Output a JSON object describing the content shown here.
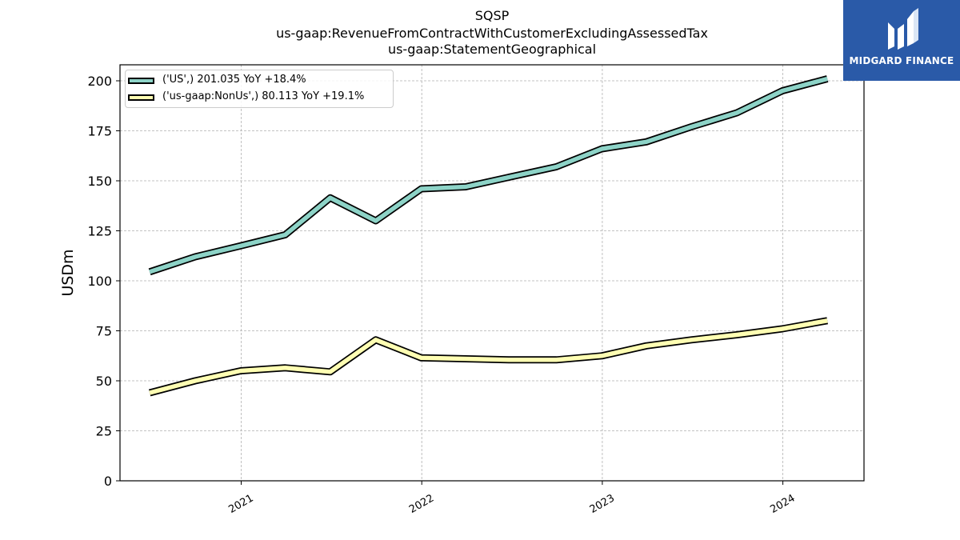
{
  "title": {
    "line1": "SQSP",
    "line2": "us-gaap:RevenueFromContractWithCustomerExcludingAssessedTax",
    "line3": "us-gaap:StatementGeographical"
  },
  "logo": {
    "text": "MIDGARD FINANCE",
    "color": "#2a5aa8",
    "icon": "midgard-logo-icon"
  },
  "chart_data": {
    "type": "line",
    "ylabel": "USDm",
    "xlabel": "",
    "ylim": [
      0,
      208
    ],
    "xlim": [
      "2020-05-01",
      "2024-06-13"
    ],
    "yticks": [
      0,
      25,
      50,
      75,
      100,
      125,
      150,
      175,
      200
    ],
    "xticks": [
      {
        "label": "2021",
        "date": "2021-01-01"
      },
      {
        "label": "2022",
        "date": "2022-01-01"
      },
      {
        "label": "2023",
        "date": "2023-01-01"
      },
      {
        "label": "2024",
        "date": "2024-01-01"
      }
    ],
    "grid": true,
    "legend_position": "top-left",
    "x": [
      "2020-06-30",
      "2020-09-30",
      "2020-12-31",
      "2021-03-31",
      "2021-06-30",
      "2021-09-30",
      "2021-12-31",
      "2022-03-31",
      "2022-06-30",
      "2022-09-30",
      "2022-12-31",
      "2023-03-31",
      "2023-06-30",
      "2023-09-30",
      "2023-12-31",
      "2024-03-31"
    ],
    "series": [
      {
        "name": "('US',) 201.035 YoY +18.4%",
        "color": "#8dd3c7",
        "values": [
          104.5,
          112.0,
          117.5,
          123.0,
          141.5,
          130.0,
          146.0,
          147.0,
          152.0,
          157.0,
          166.0,
          169.5,
          177.0,
          184.0,
          195.0,
          201.0
        ]
      },
      {
        "name": "('us-gaap:NonUs',) 80.113 YoY +19.1%",
        "color": "#ffffb3",
        "values": [
          44.0,
          50.0,
          55.0,
          56.5,
          54.5,
          70.5,
          61.5,
          61.0,
          60.5,
          60.5,
          62.5,
          67.5,
          70.5,
          73.0,
          76.0,
          80.1
        ]
      }
    ]
  }
}
